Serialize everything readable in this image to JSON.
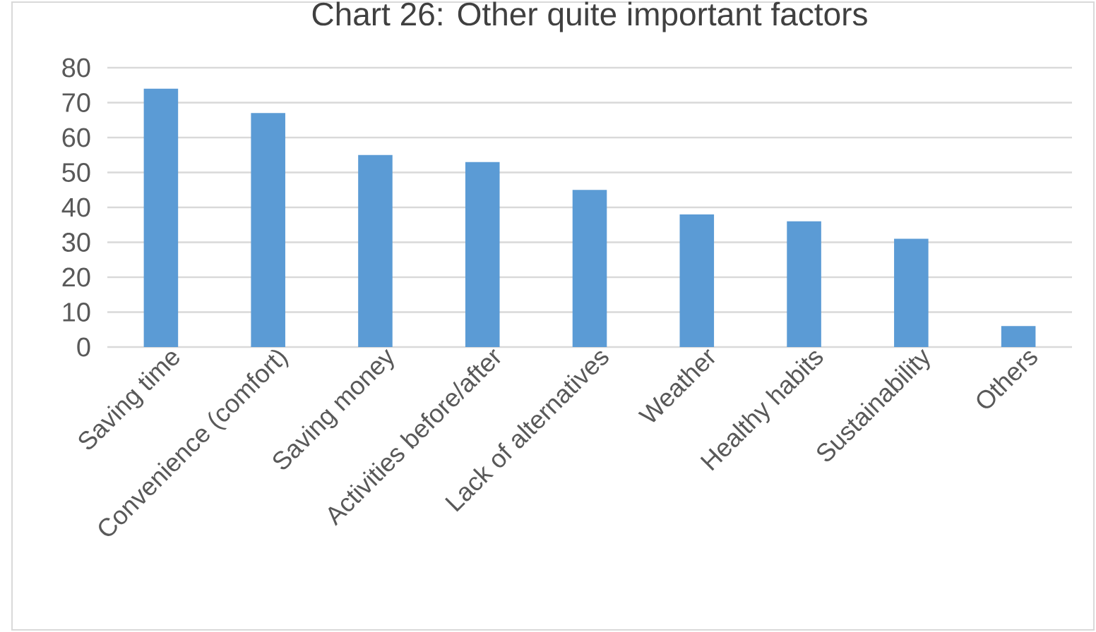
{
  "chart_data": {
    "type": "bar",
    "title": "Chart 26: Other quite important factors",
    "categories": [
      "Saving time",
      "Convenience (comfort)",
      "Saving money",
      "Activities before/after",
      "Lack of alternatives",
      "Weather",
      "Healthy habits",
      "Sustainability",
      "Others"
    ],
    "values": [
      74,
      67,
      55,
      53,
      45,
      38,
      36,
      31,
      6
    ],
    "color": "#5b9bd5",
    "ylim": [
      0,
      80
    ],
    "yticks": [
      0,
      10,
      20,
      30,
      40,
      50,
      60,
      70,
      80
    ],
    "grid": "y"
  }
}
